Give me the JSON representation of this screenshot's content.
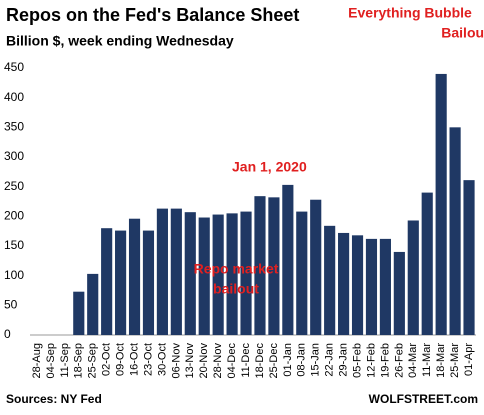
{
  "chart_data": {
    "type": "bar",
    "title": "Repos on the Fed's Balance Sheet",
    "subtitle": "Billion $, week ending Wednesday",
    "source": "Sources: NY Fed",
    "brand": "WOLFSTREET.com",
    "annotations": [
      {
        "lines": [
          "Jan 1, 2020"
        ]
      },
      {
        "lines": [
          "Everything Bubble",
          "Bailout"
        ]
      },
      {
        "lines": [
          "Repo market",
          "bailout"
        ]
      }
    ],
    "categories": [
      "28-Aug",
      "04-Sep",
      "11-Sep",
      "18-Sep",
      "25-Sep",
      "02-Oct",
      "09-Oct",
      "16-Oct",
      "23-Oct",
      "30-Oct",
      "06-Nov",
      "13-Nov",
      "20-Nov",
      "28-Nov",
      "04-Dec",
      "11-Dec",
      "18-Dec",
      "25-Dec",
      "01-Jan",
      "08-Jan",
      "15-Jan",
      "22-Jan",
      "29-Jan",
      "05-Feb",
      "12-Feb",
      "19-Feb",
      "26-Feb",
      "04-Mar",
      "11-Mar",
      "18-Mar",
      "25-Mar",
      "01-Apr"
    ],
    "values": [
      0,
      0,
      0,
      73,
      103,
      180,
      176,
      196,
      176,
      213,
      213,
      207,
      198,
      203,
      205,
      208,
      234,
      232,
      253,
      208,
      228,
      184,
      172,
      168,
      162,
      162,
      140,
      193,
      240,
      440,
      350,
      261
    ],
    "color": "#1f3864",
    "annotation_color": "#e02020",
    "ylim": [
      0,
      450
    ],
    "yticks": [
      0,
      50,
      100,
      150,
      200,
      250,
      300,
      350,
      400,
      450
    ],
    "grid": false
  }
}
